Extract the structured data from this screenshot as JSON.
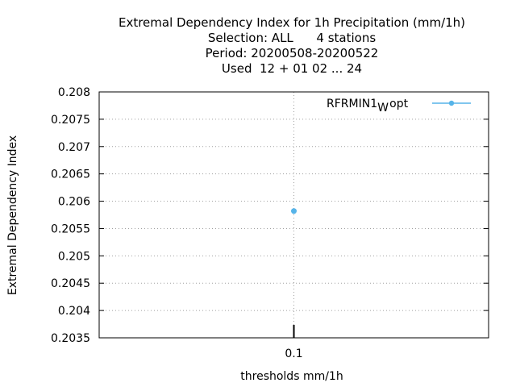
{
  "chart_data": {
    "type": "line",
    "title_lines": [
      "Extremal Dependency Index  for 1h Precipitation (mm/1h)",
      "Selection: ALL      4 stations",
      "Period: 20200508-20200522",
      "Used  12 + 01 02 ... 24"
    ],
    "xlabel": "thresholds mm/1h",
    "ylabel": "Extremal Dependency Index",
    "categories": [
      "0.1"
    ],
    "ylim": [
      0.2035,
      0.208
    ],
    "yticks": [
      "0.2035",
      "0.204",
      "0.2045",
      "0.205",
      "0.2055",
      "0.206",
      "0.2065",
      "0.207",
      "0.2075",
      "0.208"
    ],
    "grid": true,
    "legend_position": "top-right",
    "series": [
      {
        "name": "RFRMIN1",
        "name_subscript": "W",
        "name_suffix": "opt",
        "color": "#56b4e9",
        "values": [
          0.20582
        ]
      }
    ]
  }
}
